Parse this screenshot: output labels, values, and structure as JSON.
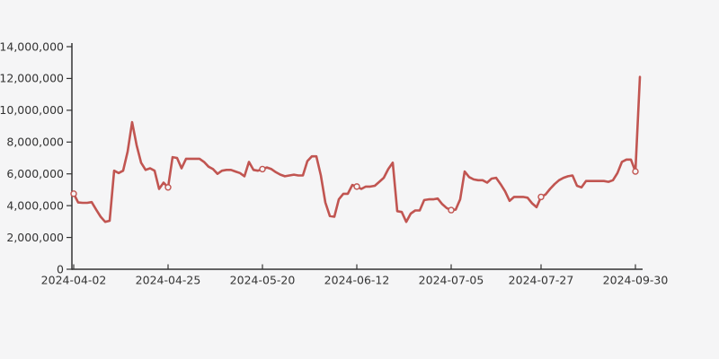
{
  "chart_data": {
    "type": "line",
    "title": "",
    "xlabel": "",
    "ylabel": "",
    "background_color": "#f5f5f6",
    "axis_color": "#333333",
    "label_color": "#333333",
    "grid": false,
    "legend": false,
    "ylim": [
      0,
      14000000
    ],
    "y_ticks": [
      0,
      2000000,
      4000000,
      6000000,
      8000000,
      10000000,
      12000000,
      14000000
    ],
    "x_tick_labels": [
      "2024-04-02",
      "2024-04-25",
      "2024-05-20",
      "2024-06-12",
      "2024-07-05",
      "2024-07-27",
      "2024-09-30"
    ],
    "x_tick_indices": [
      0,
      21,
      42,
      63,
      84,
      104,
      125
    ],
    "marker_indices": [
      0,
      21,
      42,
      63,
      84,
      104,
      125
    ],
    "marker_values_at_ticks": [
      4750000,
      5150000,
      6300000,
      5200000,
      3720000,
      4550000,
      6150000
    ],
    "last_value": 12100000,
    "series": [
      {
        "name": "series-1",
        "color": "#c15551",
        "marker_style": "open-circle",
        "values": [
          4750000,
          4200000,
          4180000,
          4180000,
          4220000,
          3750000,
          3300000,
          2980000,
          3050000,
          6200000,
          6050000,
          6200000,
          7400000,
          9250000,
          7800000,
          6700000,
          6250000,
          6350000,
          6200000,
          5050000,
          5450000,
          5150000,
          7050000,
          7000000,
          6350000,
          6950000,
          6950000,
          6950000,
          6950000,
          6750000,
          6450000,
          6300000,
          6000000,
          6200000,
          6250000,
          6250000,
          6150000,
          6050000,
          5850000,
          6750000,
          6250000,
          6200000,
          6300000,
          6400000,
          6300000,
          6100000,
          5950000,
          5850000,
          5900000,
          5950000,
          5900000,
          5900000,
          6800000,
          7100000,
          7100000,
          5900000,
          4200000,
          3350000,
          3300000,
          4400000,
          4750000,
          4750000,
          5300000,
          5200000,
          5050000,
          5200000,
          5200000,
          5250000,
          5500000,
          5750000,
          6300000,
          6700000,
          3650000,
          3600000,
          2980000,
          3500000,
          3700000,
          3700000,
          4350000,
          4400000,
          4400000,
          4450000,
          4100000,
          3850000,
          3720000,
          3750000,
          4400000,
          6150000,
          5800000,
          5650000,
          5600000,
          5600000,
          5450000,
          5700000,
          5750000,
          5350000,
          4900000,
          4300000,
          4550000,
          4550000,
          4550000,
          4500000,
          4150000,
          3900000,
          4550000,
          4700000,
          5050000,
          5350000,
          5600000,
          5750000,
          5850000,
          5900000,
          5250000,
          5150000,
          5550000,
          5550000,
          5550000,
          5550000,
          5550000,
          5500000,
          5600000,
          6050000,
          6750000,
          6900000,
          6900000,
          6150000,
          12100000
        ]
      }
    ]
  }
}
